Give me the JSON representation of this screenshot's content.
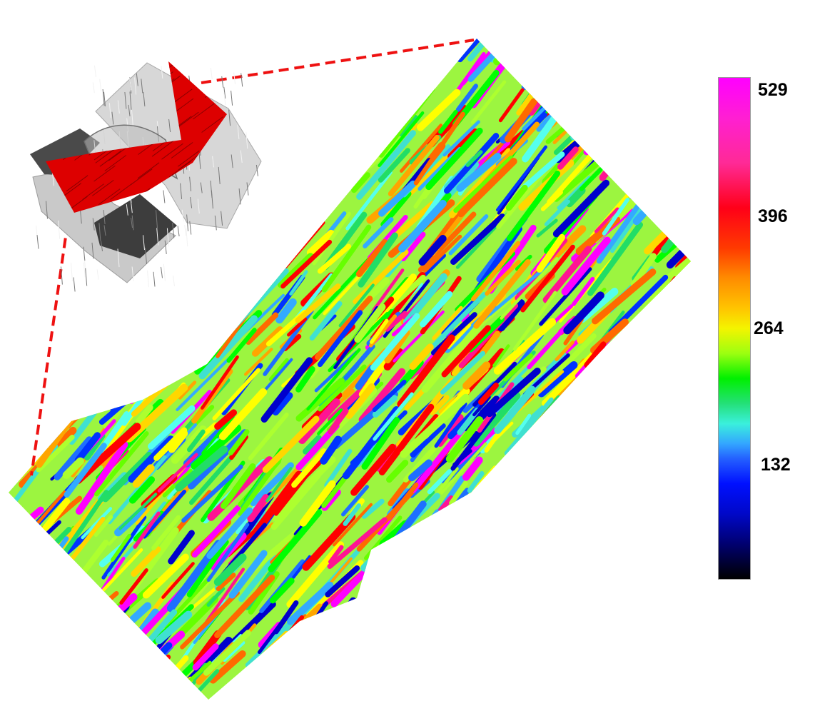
{
  "colorbar": {
    "ticks": [
      {
        "label": "529",
        "value": 529
      },
      {
        "label": "396",
        "value": 396
      },
      {
        "label": "264",
        "value": 264
      },
      {
        "label": "132",
        "value": 132
      }
    ],
    "colors": [
      "#ff00ff",
      "#ff0018",
      "#ff8c00",
      "#f4f400",
      "#00f000",
      "#3af0dc",
      "#2460ff",
      "#0010ff",
      "#000000"
    ]
  },
  "inset": {
    "highlight_color": "#dd0000",
    "connector_color": "#ee1111"
  },
  "map": {
    "palette": [
      "#ff00ff",
      "#ff1493",
      "#ff0000",
      "#ff6a00",
      "#ffa500",
      "#ffd700",
      "#ffff00",
      "#adff2f",
      "#66ff00",
      "#00ff00",
      "#22dd66",
      "#40e0d0",
      "#55ffee",
      "#33aaff",
      "#1e6fff",
      "#0033ff",
      "#0000cc"
    ]
  }
}
